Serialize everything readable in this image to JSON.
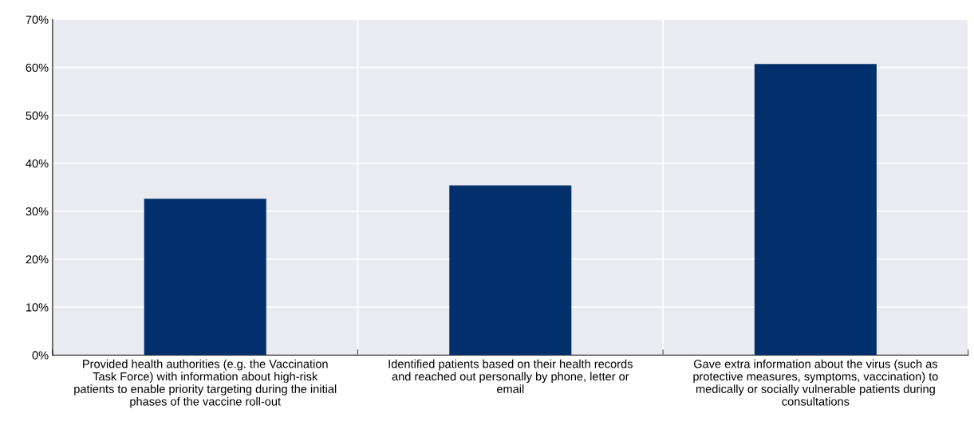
{
  "chart_data": {
    "type": "bar",
    "categories": [
      "Provided health authorities (e.g. the Vaccination\nTask Force) with information about high-risk\npatients to enable priority targeting during the initial\nphases of the vaccine roll-out",
      "Identified patients based on their health records\nand reached out personally by phone, letter or\nemail",
      "Gave extra information about the virus (such as\nprotective measures, symptoms, vaccination) to\nmedically or socially vulnerable patients during\nconsultations"
    ],
    "values": [
      32.6,
      35.4,
      60.7
    ],
    "color": "#002f6c",
    "ylim": [
      0,
      70
    ],
    "yticks": [
      {
        "value": 0,
        "label": "0%"
      },
      {
        "value": 10,
        "label": "10%"
      },
      {
        "value": 20,
        "label": "20%"
      },
      {
        "value": 30,
        "label": "30%"
      },
      {
        "value": 40,
        "label": "40%"
      },
      {
        "value": 50,
        "label": "50%"
      },
      {
        "value": 60,
        "label": "60%"
      },
      {
        "value": 70,
        "label": "70%"
      }
    ],
    "grid": true
  }
}
